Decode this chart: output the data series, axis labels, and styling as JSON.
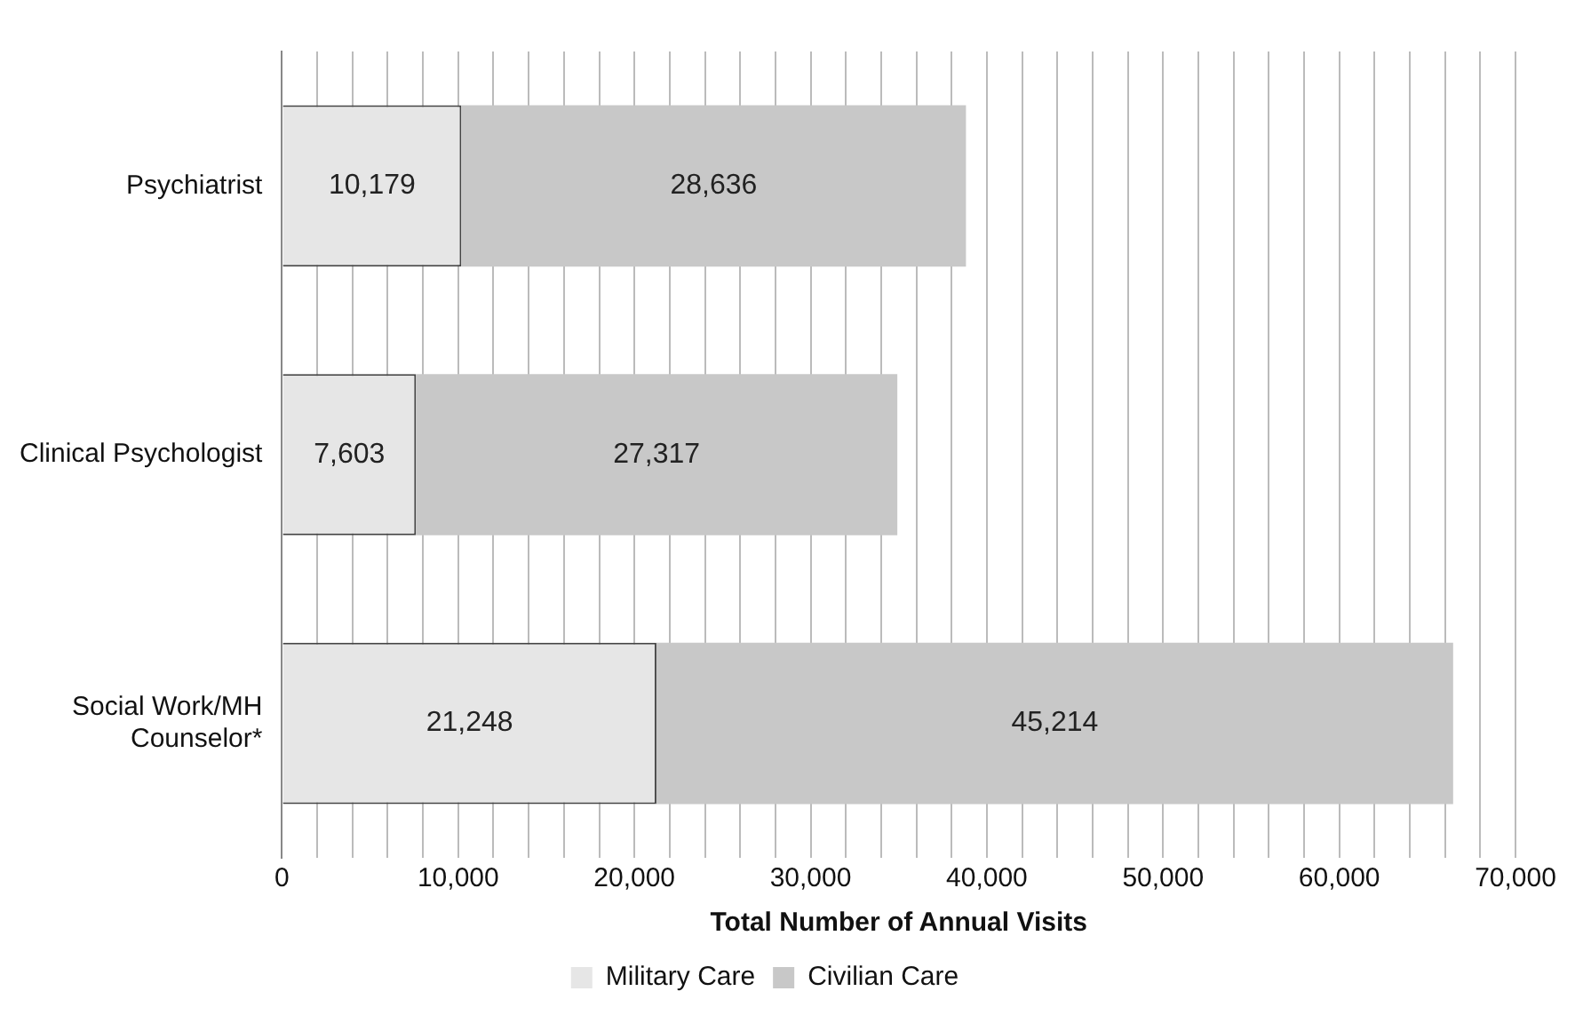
{
  "chart_data": {
    "type": "bar",
    "orientation": "horizontal",
    "stacked": true,
    "categories": [
      "Psychiatrist",
      "Clinical Psychologist",
      "Social Work/MH Counselor*"
    ],
    "series": [
      {
        "name": "Military Care",
        "color": "#e6e6e6",
        "values": [
          10179,
          7603,
          21248
        ],
        "value_labels": [
          "10,179",
          "7,603",
          "21,248"
        ]
      },
      {
        "name": "Civilian Care",
        "color": "#c8c8c8",
        "values": [
          28636,
          27317,
          45214
        ],
        "value_labels": [
          "28,636",
          "27,317",
          "45,214"
        ]
      }
    ],
    "xlabel": "Total Number of Annual Visits",
    "xlim": [
      0,
      70000
    ],
    "xticks": [
      0,
      {
        "value": 2000,
        "label": null
      },
      {
        "value": 4000,
        "label": null
      },
      {
        "value": 6000,
        "label": null
      },
      {
        "value": 8000,
        "label": null
      },
      {
        "value": 10000,
        "label": "10,000"
      },
      {
        "value": 12000,
        "label": null
      },
      {
        "value": 14000,
        "label": null
      },
      {
        "value": 16000,
        "label": null
      },
      {
        "value": 18000,
        "label": null
      },
      {
        "value": 20000,
        "label": "20,000"
      },
      {
        "value": 22000,
        "label": null
      },
      {
        "value": 24000,
        "label": null
      },
      {
        "value": 26000,
        "label": null
      },
      {
        "value": 28000,
        "label": null
      },
      {
        "value": 30000,
        "label": "30,000"
      },
      {
        "value": 32000,
        "label": null
      },
      {
        "value": 34000,
        "label": null
      },
      {
        "value": 36000,
        "label": null
      },
      {
        "value": 38000,
        "label": null
      },
      {
        "value": 40000,
        "label": "40,000"
      },
      {
        "value": 42000,
        "label": null
      },
      {
        "value": 44000,
        "label": null
      },
      {
        "value": 46000,
        "label": null
      },
      {
        "value": 48000,
        "label": null
      },
      {
        "value": 50000,
        "label": "50,000"
      },
      {
        "value": 52000,
        "label": null
      },
      {
        "value": 54000,
        "label": null
      },
      {
        "value": 56000,
        "label": null
      },
      {
        "value": 58000,
        "label": null
      },
      {
        "value": 60000,
        "label": "60,000"
      },
      {
        "value": 62000,
        "label": null
      },
      {
        "value": 64000,
        "label": null
      },
      {
        "value": 66000,
        "label": null
      },
      {
        "value": 68000,
        "label": null
      },
      {
        "value": 70000,
        "label": "70,000"
      }
    ],
    "grid": "x",
    "legend": "bottom"
  }
}
